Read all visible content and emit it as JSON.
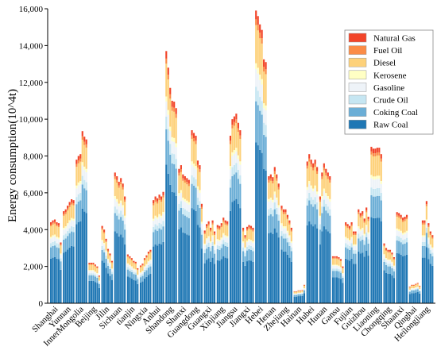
{
  "chart_data": {
    "type": "bar",
    "stacked": true,
    "ylabel": "Energy consumption(10^4t)",
    "xlabel": "",
    "ylim": [
      0,
      16000
    ],
    "yticks": [
      0,
      2000,
      4000,
      6000,
      8000,
      10000,
      12000,
      14000,
      16000
    ],
    "ytick_labels": [
      "0",
      "2,000",
      "4,000",
      "6,000",
      "8,000",
      "10,000",
      "12,000",
      "14,000",
      "16,000"
    ],
    "bars_per_category": 6,
    "legend_position": "top-right",
    "categories": [
      "Shanghai",
      "Yunnan",
      "InnerMongolia",
      "Beijing",
      "Jilin",
      "Sichuan",
      "tianjin",
      "Ningxia",
      "Anhui",
      "Shandong",
      "Shanxi",
      "Guangdong",
      "Guangxi",
      "Xinjiang",
      "Jiangsu",
      "Jiangxi",
      "Hebei",
      "Henan",
      "Zhejiang",
      "Hainan",
      "Hubei",
      "Hunan",
      "Gansu",
      "Fujian",
      "Guizhou",
      "Liaoning",
      "Chongqing",
      "Shaanxi",
      "Qinghai",
      "Heilongjiang"
    ],
    "series": [
      {
        "name": "Raw Coal",
        "color": "#1f77b4"
      },
      {
        "name": "Coking Coal",
        "color": "#6baed6"
      },
      {
        "name": "Crude Oil",
        "color": "#c6e6f2"
      },
      {
        "name": "Gasoline",
        "color": "#eef3f8"
      },
      {
        "name": "Kerosene",
        "color": "#ffffc4"
      },
      {
        "name": "Diesel",
        "color": "#fdd17a"
      },
      {
        "name": "Fuel Oil",
        "color": "#fb8c47"
      },
      {
        "name": "Natural Gas",
        "color": "#f2452a"
      }
    ],
    "legend_order": [
      "Natural Gas",
      "Fuel Oil",
      "Diesel",
      "Kerosene",
      "Gasoline",
      "Crude Oil",
      "Coking Coal",
      "Raw Coal"
    ],
    "totals": [
      [
        4400,
        4500,
        4550,
        4400,
        4350,
        3300
      ],
      [
        5000,
        5100,
        5300,
        5500,
        5650,
        5600
      ],
      [
        7800,
        8000,
        8100,
        9350,
        9050,
        8900
      ],
      [
        2200,
        2200,
        2200,
        2100,
        2000,
        1500
      ],
      [
        4200,
        4000,
        3500,
        2950,
        2700,
        2300
      ],
      [
        7100,
        6900,
        6600,
        6800,
        6500,
        5800
      ],
      [
        2650,
        2550,
        2450,
        2300,
        2250,
        1900
      ],
      [
        2050,
        2150,
        2450,
        2600,
        2800,
        2900
      ],
      [
        5600,
        5800,
        5700,
        5900,
        5800,
        6050
      ],
      [
        13700,
        12800,
        11700,
        11000,
        10950,
        10600
      ],
      [
        7300,
        7500,
        7000,
        6900,
        6800,
        6700
      ],
      [
        9400,
        9250,
        9100,
        7750,
        7500,
        5400
      ],
      [
        3950,
        4300,
        4450,
        4100,
        4500,
        3900
      ],
      [
        4250,
        4200,
        4350,
        4650,
        4500,
        4450
      ],
      [
        9100,
        10000,
        10150,
        10300,
        9800,
        9400
      ],
      [
        4100,
        3700,
        4150,
        4250,
        4200,
        4100
      ],
      [
        15900,
        15600,
        15150,
        14850,
        13250,
        13100
      ],
      [
        6900,
        7000,
        6850,
        7400,
        7000,
        6500
      ],
      [
        5300,
        5100,
        5100,
        4800,
        4500,
        4100
      ],
      [
        650,
        650,
        700,
        700,
        720,
        1000
      ],
      [
        7700,
        8100,
        7800,
        7600,
        7800,
        7400
      ],
      [
        5800,
        7100,
        7600,
        7300,
        7100,
        6900
      ],
      [
        2550,
        2550,
        2550,
        2500,
        2400,
        2000
      ],
      [
        4400,
        4300,
        4200,
        4400,
        3900,
        3900
      ],
      [
        5100,
        4900,
        5000,
        4600,
        5200,
        4700
      ],
      [
        8500,
        8400,
        8400,
        8450,
        8450,
        8100
      ],
      [
        3250,
        3000,
        2900,
        2900,
        2750,
        2500
      ],
      [
        4950,
        4900,
        4800,
        4650,
        4700,
        4800
      ],
      [
        900,
        1000,
        1000,
        1050,
        1100,
        950
      ],
      [
        4500,
        4500,
        5550,
        4350,
        3900,
        3700
      ]
    ],
    "shares": [
      0.55,
      0.14,
      0.05,
      0.06,
      0.02,
      0.13,
      0.02,
      0.03
    ]
  }
}
